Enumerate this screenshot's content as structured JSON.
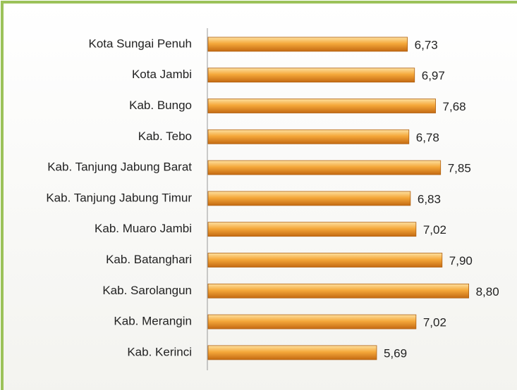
{
  "chart_data": {
    "type": "barh",
    "categories": [
      "Kota Sungai Penuh",
      "Kota Jambi",
      "Kab. Bungo",
      "Kab. Tebo",
      "Kab. Tanjung Jabung Barat",
      "Kab. Tanjung Jabung Timur",
      "Kab. Muaro Jambi",
      "Kab. Batanghari",
      "Kab. Sarolangun",
      "Kab. Merangin",
      "Kab. Kerinci"
    ],
    "values": [
      6.73,
      6.97,
      7.68,
      6.78,
      7.85,
      6.83,
      7.02,
      7.9,
      8.8,
      7.02,
      5.69
    ],
    "value_labels": [
      "6,73",
      "6,97",
      "7,68",
      "6,78",
      "7,85",
      "6,83",
      "7,02",
      "7,90",
      "8,80",
      "7,02",
      "5,69"
    ],
    "color": "#f0a030",
    "xlim": [
      0,
      10
    ]
  }
}
